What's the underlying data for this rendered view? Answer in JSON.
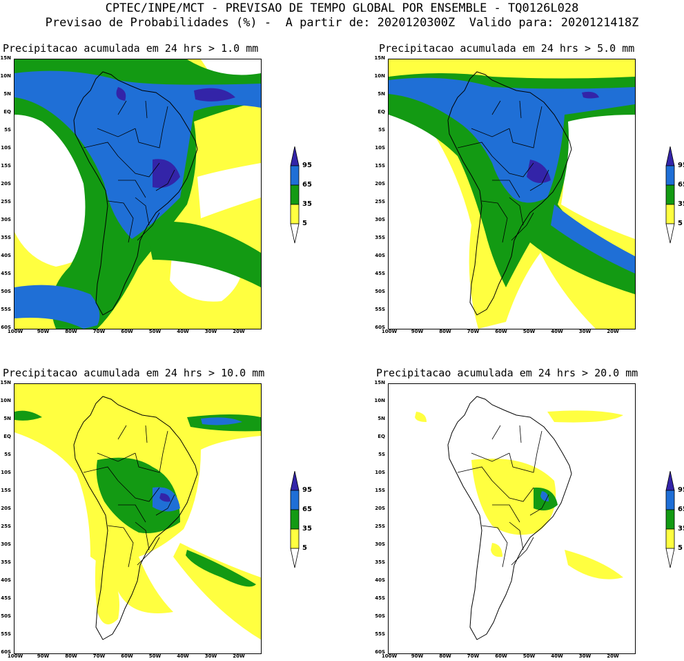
{
  "header": {
    "line1": "CPTEC/INPE/MCT - PREVISAO DE TEMPO GLOBAL POR ENSEMBLE - TQ0126L028",
    "line2": "Previsao de Probabilidades (%) -  A partir de: 2020120300Z  Valido para: 2020121418Z"
  },
  "colors": {
    "yellow": "#ffff40",
    "green": "#139a13",
    "blue": "#1f6fd6",
    "purple": "#3324a8",
    "ocean": "#ffffff"
  },
  "lat_labels": [
    "15N",
    "10N",
    "5N",
    "EQ",
    "5S",
    "10S",
    "15S",
    "20S",
    "25S",
    "30S",
    "35S",
    "40S",
    "45S",
    "50S",
    "55S",
    "60S"
  ],
  "lon_labels": [
    "100W",
    "90W",
    "80W",
    "70W",
    "60W",
    "50W",
    "40W",
    "30W",
    "20W"
  ],
  "legend": {
    "levels": [
      "95",
      "65",
      "35",
      "5"
    ],
    "colors": [
      "#3324a8",
      "#1f6fd6",
      "#139a13",
      "#ffff40",
      "#ffffff"
    ]
  },
  "panels": [
    {
      "id": "p1",
      "title": "Precipitacao acumulada em 24 hrs > 1.0 mm",
      "threshold_mm": 1.0
    },
    {
      "id": "p2",
      "title": "Precipitacao acumulada em 24 hrs > 5.0 mm",
      "threshold_mm": 5.0
    },
    {
      "id": "p3",
      "title": "Precipitacao acumulada em 24 hrs > 10.0 mm",
      "threshold_mm": 10.0
    },
    {
      "id": "p4",
      "title": "Precipitacao acumulada em 24 hrs > 20.0 mm",
      "threshold_mm": 20.0
    }
  ]
}
